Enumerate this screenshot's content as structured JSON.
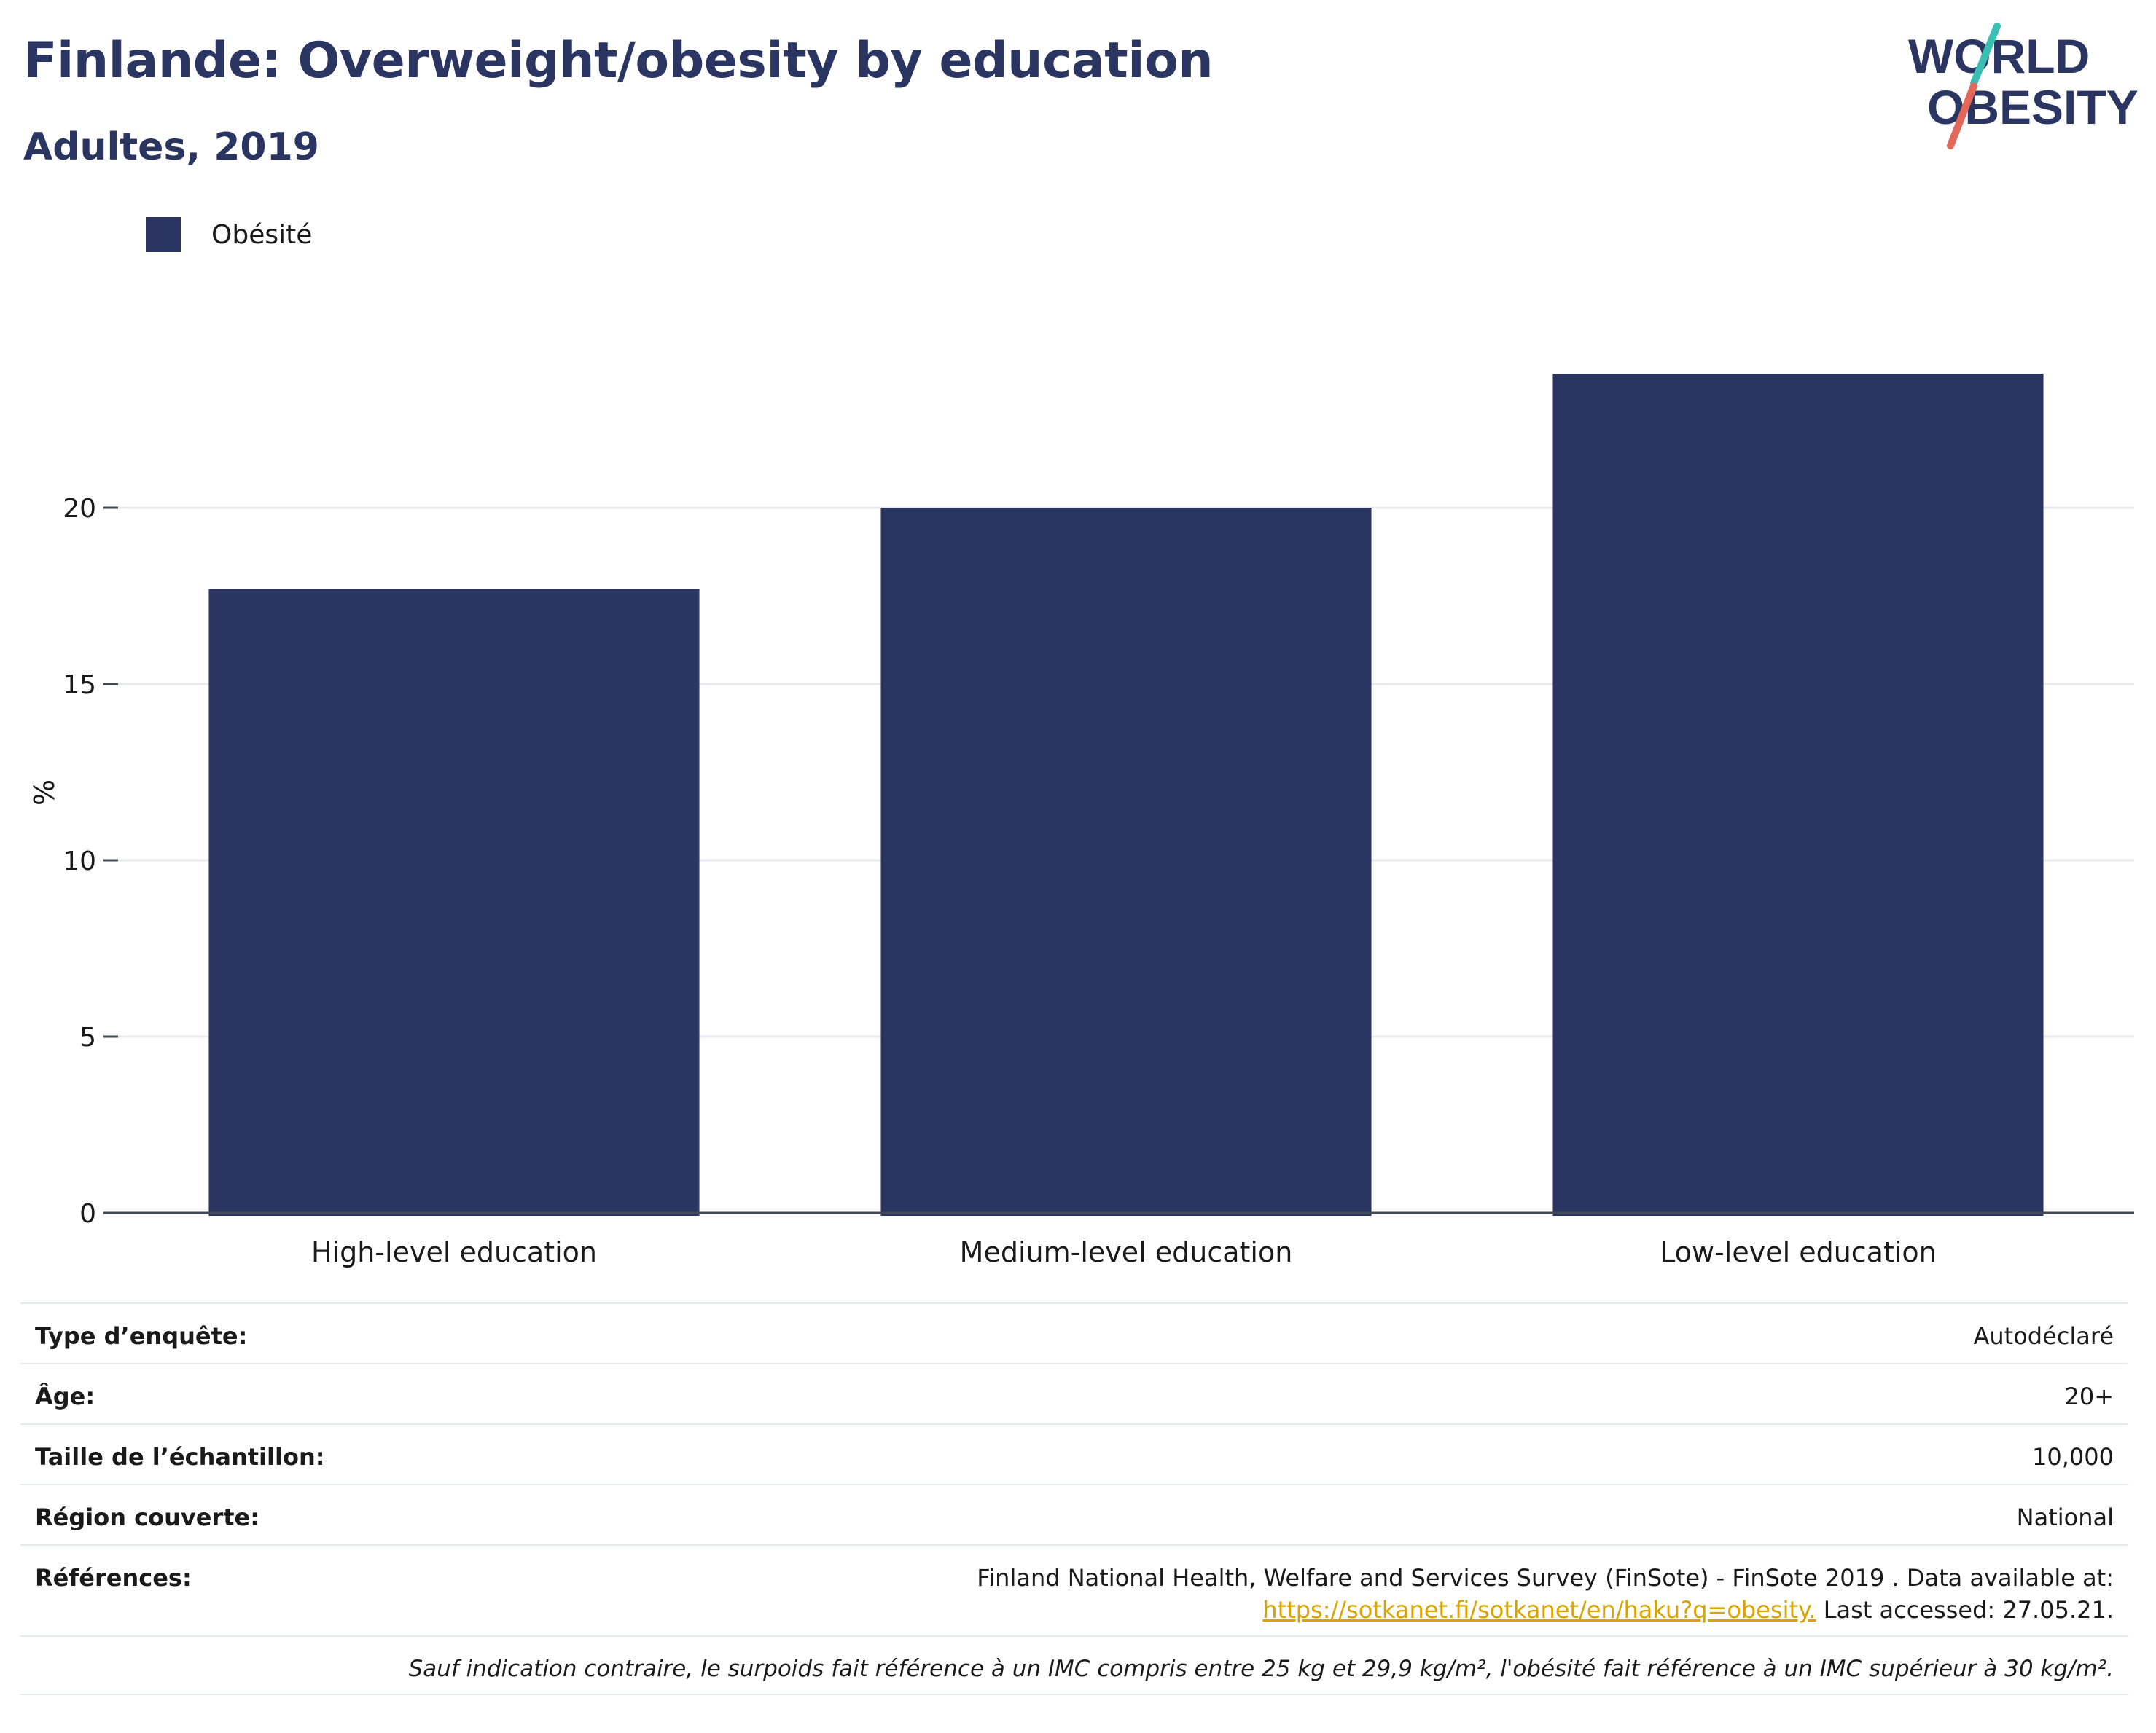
{
  "header": {
    "title": "Finlande: Overweight/obesity by education",
    "subtitle": "Adultes, 2019"
  },
  "logo": {
    "line1": "WORLD",
    "line2": "OBESITY"
  },
  "colors": {
    "bar": "#2a3561",
    "title": "#2a3561",
    "link": "#d9a400",
    "logo_teal": "#3bbfb5",
    "logo_red": "#e3685a"
  },
  "chart_data": {
    "type": "bar",
    "categories": [
      "High-level education",
      "Medium-level education",
      "Low-level education"
    ],
    "series": [
      {
        "name": "Obésité",
        "values": [
          17.7,
          20.0,
          23.8
        ]
      }
    ],
    "ylabel": "%",
    "xlabel": "",
    "ylim": [
      0,
      25
    ],
    "yticks": [
      0,
      5,
      10,
      15,
      20
    ],
    "grid": true,
    "legend_placement": "top-left"
  },
  "info": {
    "survey_type": {
      "label": "Type d’enquête:",
      "value": "Autodéclaré"
    },
    "age": {
      "label": "Âge:",
      "value": "20+"
    },
    "sample_size": {
      "label": "Taille de l’échantillon:",
      "value": "10,000"
    },
    "region": {
      "label": "Région couverte:",
      "value": "National"
    },
    "references": {
      "label": "Références:",
      "line1": "Finland National Health, Welfare and Services Survey (FinSote) - FinSote 2019 . Data available at:",
      "link": "https://sotkanet.fi/sotkanet/en/haku?q=obesity.",
      "suffix": " Last accessed: 27.05.21."
    },
    "note": "Sauf indication contraire, le surpoids fait référence à un IMC compris entre 25 kg et 29,9 kg/m², l'obésité fait référence à un IMC supérieur à 30 kg/m²."
  }
}
